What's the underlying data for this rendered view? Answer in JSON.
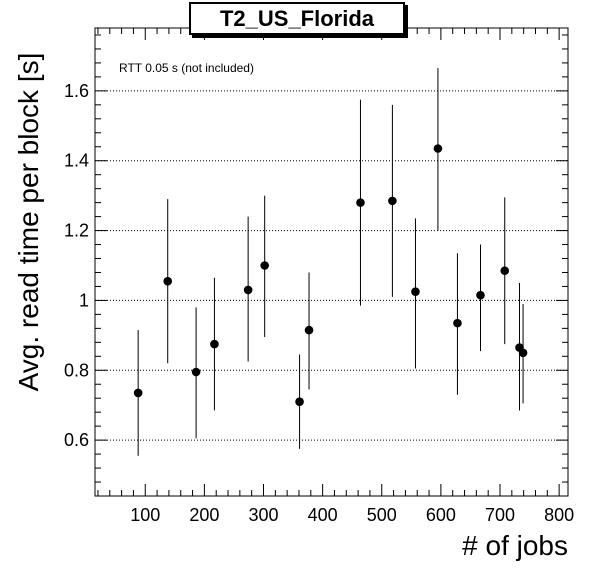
{
  "chart_data": {
    "type": "scatter",
    "title": "T2_US_Florida",
    "annotation": "RTT 0.05 s (not included)",
    "xlabel": "# of jobs",
    "ylabel": "Avg. read time per block [s]",
    "xlim": [
      15,
      815
    ],
    "ylim": [
      0.44,
      1.78
    ],
    "xticks": [
      100,
      200,
      300,
      400,
      500,
      600,
      700,
      800
    ],
    "xtick_labels": [
      "100",
      "200",
      "300",
      "400",
      "500",
      "600",
      "700",
      "800"
    ],
    "yticks": [
      0.6,
      0.8,
      1.0,
      1.2,
      1.4,
      1.6
    ],
    "ytick_labels": [
      "0.6",
      "0.8",
      "1",
      "1.2",
      "1.4",
      "1.6"
    ],
    "grid": "horizontal-dotted",
    "series": [
      {
        "x": [
          88,
          138,
          186,
          217,
          274,
          302,
          361,
          377,
          464,
          518,
          557,
          595,
          628,
          667,
          708,
          733,
          739
        ],
        "y": [
          0.735,
          1.055,
          0.795,
          0.875,
          1.03,
          1.1,
          0.71,
          0.915,
          1.28,
          1.285,
          1.025,
          1.435,
          0.935,
          1.015,
          1.085,
          0.865,
          0.85
        ],
        "y_low": [
          0.555,
          0.82,
          0.605,
          0.685,
          0.825,
          0.895,
          0.575,
          0.745,
          0.985,
          1.01,
          0.805,
          1.2,
          0.73,
          0.855,
          0.875,
          0.685,
          0.705
        ],
        "y_high": [
          0.915,
          1.29,
          0.98,
          1.065,
          1.24,
          1.3,
          0.845,
          1.08,
          1.575,
          1.56,
          1.235,
          1.665,
          1.135,
          1.16,
          1.295,
          1.05,
          0.99
        ]
      }
    ]
  }
}
